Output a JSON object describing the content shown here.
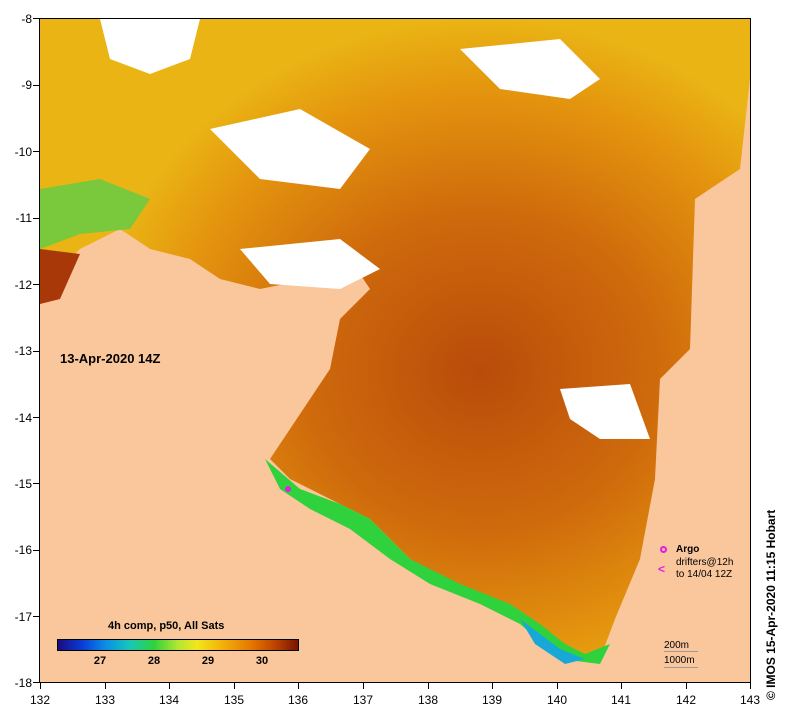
{
  "map": {
    "timestamp": "13-Apr-2020 14Z",
    "colorbar_title": "4h comp, p50, All Sats",
    "colorbar_ticks": [
      "27",
      "28",
      "29",
      "30"
    ],
    "credit": "© IMOS 15-Apr-2020 11:15 Hobart",
    "legend": {
      "argo": "Argo",
      "drifters_line1": "drifters@12h",
      "drifters_line2": "to 14/04 12Z",
      "depth_200": "200m",
      "depth_1000": "1000m"
    },
    "y_ticks": [
      "-8",
      "-9",
      "-10",
      "-11",
      "-12",
      "-13",
      "-14",
      "-15",
      "-16",
      "-17",
      "-18"
    ],
    "x_ticks": [
      "132",
      "133",
      "134",
      "135",
      "136",
      "137",
      "138",
      "139",
      "140",
      "141",
      "142",
      "143"
    ],
    "colors": {
      "land": "#fac79d",
      "cloud": "#ffffff",
      "warm": "#d97a10",
      "hot": "#b84c0a",
      "cool": "#2fd23c",
      "marker": "#e01ee0"
    }
  }
}
